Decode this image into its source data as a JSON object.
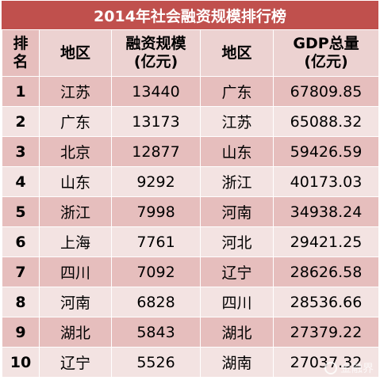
{
  "title": "2014年社会融资规模排行榜",
  "headers": {
    "rank": [
      "排",
      "名"
    ],
    "region1": "地区",
    "financing": [
      "融资规模",
      "(亿元)"
    ],
    "region2": "地区",
    "gdp": [
      "GDP总量",
      "(亿元)"
    ]
  },
  "rows": [
    {
      "rank": "1",
      "region1": "江苏",
      "financing": "13440",
      "region2": "广东",
      "gdp": "67809.85"
    },
    {
      "rank": "2",
      "region1": "广东",
      "financing": "13173",
      "region2": "江苏",
      "gdp": "65088.32"
    },
    {
      "rank": "3",
      "region1": "北京",
      "financing": "12877",
      "region2": "山东",
      "gdp": "59426.59"
    },
    {
      "rank": "4",
      "region1": "山东",
      "financing": "9292",
      "region2": "浙江",
      "gdp": "40173.03"
    },
    {
      "rank": "5",
      "region1": "浙江",
      "financing": "7998",
      "region2": "河南",
      "gdp": "34938.24"
    },
    {
      "rank": "6",
      "region1": "上海",
      "financing": "7761",
      "region2": "河北",
      "gdp": "29421.25"
    },
    {
      "rank": "7",
      "region1": "四川",
      "financing": "7092",
      "region2": "辽宁",
      "gdp": "28626.58"
    },
    {
      "rank": "8",
      "region1": "河南",
      "financing": "6828",
      "region2": "四川",
      "gdp": "28536.66"
    },
    {
      "rank": "9",
      "region1": "湖北",
      "financing": "5843",
      "region2": "湖北",
      "gdp": "27379.22"
    },
    {
      "rank": "10",
      "region1": "辽宁",
      "financing": "5526",
      "region2": "湖南",
      "gdp": "27037.32"
    }
  ],
  "watermark": {
    "text": "金融界",
    "icon": "watermark-logo-icon"
  },
  "colors": {
    "title_bg": "#c0504d",
    "row_dark": "#e6bebd",
    "row_light": "#f3e3e2"
  }
}
